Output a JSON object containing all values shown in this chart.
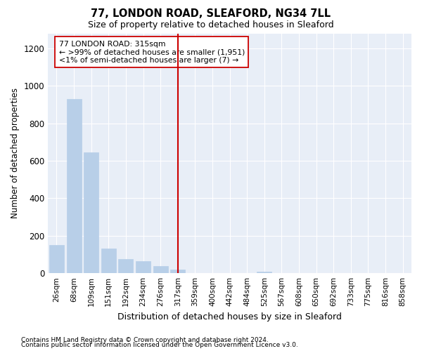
{
  "title1": "77, LONDON ROAD, SLEAFORD, NG34 7LL",
  "title2": "Size of property relative to detached houses in Sleaford",
  "xlabel": "Distribution of detached houses by size in Sleaford",
  "ylabel": "Number of detached properties",
  "categories": [
    "26sqm",
    "68sqm",
    "109sqm",
    "151sqm",
    "192sqm",
    "234sqm",
    "276sqm",
    "317sqm",
    "359sqm",
    "400sqm",
    "442sqm",
    "484sqm",
    "525sqm",
    "567sqm",
    "608sqm",
    "650sqm",
    "692sqm",
    "733sqm",
    "775sqm",
    "816sqm",
    "858sqm"
  ],
  "values": [
    150,
    930,
    645,
    130,
    75,
    65,
    40,
    20,
    0,
    0,
    0,
    0,
    10,
    0,
    0,
    0,
    0,
    0,
    0,
    0,
    0
  ],
  "bar_color": "#b8cfe8",
  "bar_edge_color": "#b8cfe8",
  "vline_x_index": 7,
  "vline_color": "#cc0000",
  "annotation_text": "77 LONDON ROAD: 315sqm\n← >99% of detached houses are smaller (1,951)\n<1% of semi-detached houses are larger (7) →",
  "annotation_box_color": "#ffffff",
  "annotation_box_edge": "#cc0000",
  "ylim": [
    0,
    1280
  ],
  "yticks": [
    0,
    200,
    400,
    600,
    800,
    1000,
    1200
  ],
  "bg_color": "#e8eef7",
  "footer1": "Contains HM Land Registry data © Crown copyright and database right 2024.",
  "footer2": "Contains public sector information licensed under the Open Government Licence v3.0."
}
